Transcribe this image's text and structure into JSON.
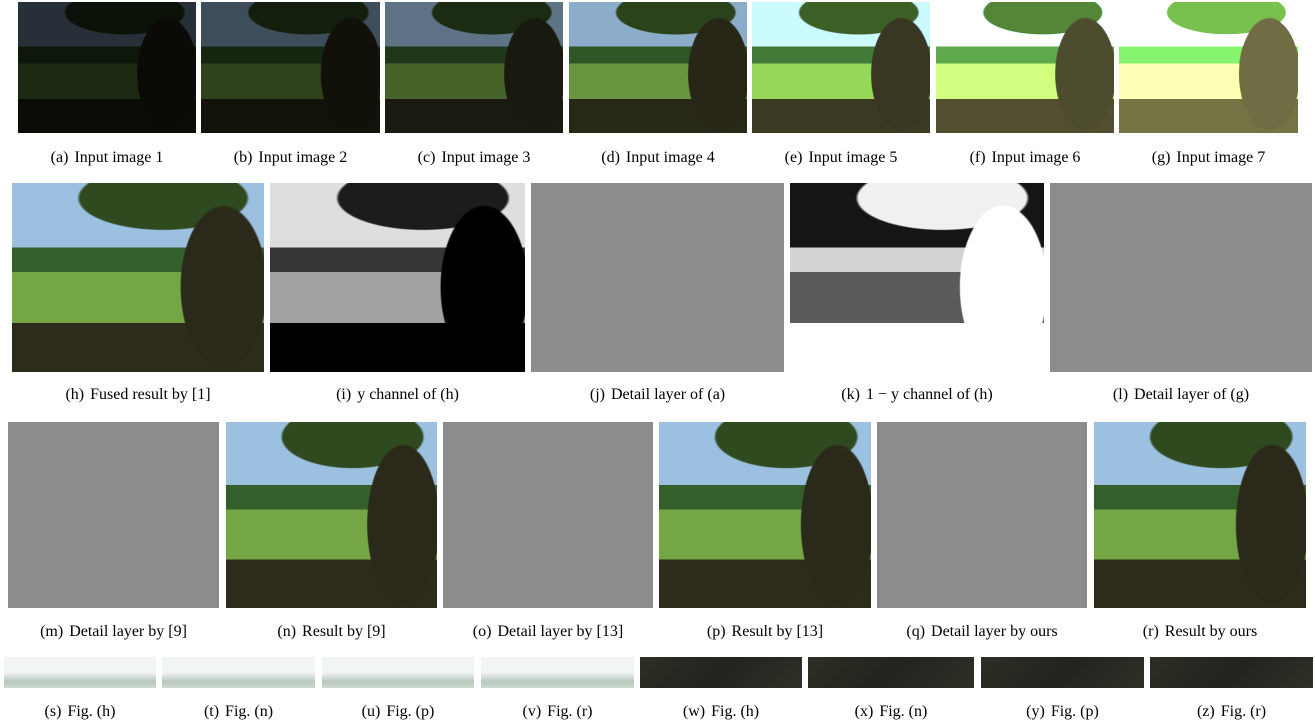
{
  "figure": {
    "rows": [
      {
        "panels": [
          {
            "label": "(a)",
            "caption": "Input image 1"
          },
          {
            "label": "(b)",
            "caption": "Input image 2"
          },
          {
            "label": "(c)",
            "caption": "Input image 3"
          },
          {
            "label": "(d)",
            "caption": "Input image 4"
          },
          {
            "label": "(e)",
            "caption": "Input image 5"
          },
          {
            "label": "(f)",
            "caption": "Input image 6"
          },
          {
            "label": "(g)",
            "caption": "Input image 7"
          }
        ]
      },
      {
        "panels": [
          {
            "label": "(h)",
            "caption": "Fused result by [1]"
          },
          {
            "label": "(i)",
            "caption": "y channel of (h)"
          },
          {
            "label": "(j)",
            "caption": "Detail layer of (a)"
          },
          {
            "label": "(k)",
            "caption": "1 − y channel of (h)"
          },
          {
            "label": "(l)",
            "caption": "Detail layer of (g)"
          }
        ]
      },
      {
        "panels": [
          {
            "label": "(m)",
            "caption": "Detail layer by [9]"
          },
          {
            "label": "(n)",
            "caption": "Result by [9]"
          },
          {
            "label": "(o)",
            "caption": "Detail layer by [13]"
          },
          {
            "label": "(p)",
            "caption": "Result by [13]"
          },
          {
            "label": "(q)",
            "caption": "Detail layer by ours"
          },
          {
            "label": "(r)",
            "caption": "Result by ours"
          }
        ]
      },
      {
        "panels": [
          {
            "label": "(s)",
            "caption": "Fig. (h)"
          },
          {
            "label": "(t)",
            "caption": "Fig. (n)"
          },
          {
            "label": "(u)",
            "caption": "Fig. (p)"
          },
          {
            "label": "(v)",
            "caption": "Fig. (r)"
          },
          {
            "label": "(w)",
            "caption": "Fig. (h)"
          },
          {
            "label": "(x)",
            "caption": "Fig. (n)"
          },
          {
            "label": "(y)",
            "caption": "Fig. (p)"
          },
          {
            "label": "(z)",
            "caption": "Fig. (r)"
          }
        ]
      }
    ]
  }
}
